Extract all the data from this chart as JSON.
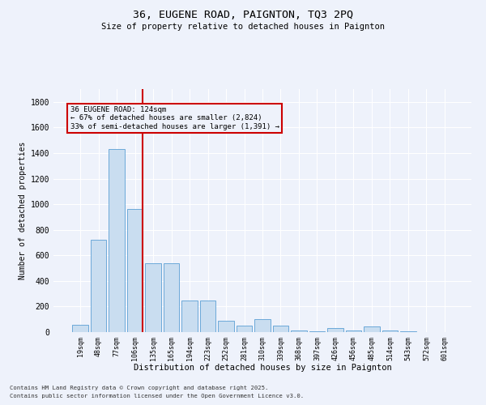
{
  "title1": "36, EUGENE ROAD, PAIGNTON, TQ3 2PQ",
  "title2": "Size of property relative to detached houses in Paignton",
  "xlabel": "Distribution of detached houses by size in Paignton",
  "ylabel": "Number of detached properties",
  "categories": [
    "19sqm",
    "48sqm",
    "77sqm",
    "106sqm",
    "135sqm",
    "165sqm",
    "194sqm",
    "223sqm",
    "252sqm",
    "281sqm",
    "310sqm",
    "339sqm",
    "368sqm",
    "397sqm",
    "426sqm",
    "456sqm",
    "485sqm",
    "514sqm",
    "543sqm",
    "572sqm",
    "601sqm"
  ],
  "values": [
    60,
    720,
    1430,
    960,
    540,
    540,
    250,
    250,
    90,
    50,
    100,
    50,
    10,
    5,
    30,
    10,
    45,
    10,
    5,
    3,
    3
  ],
  "bar_color": "#c9ddf0",
  "bar_edge_color": "#5a9fd4",
  "vline_color": "#cc0000",
  "annotation_text": "36 EUGENE ROAD: 124sqm\n← 67% of detached houses are smaller (2,824)\n33% of semi-detached houses are larger (1,391) →",
  "annotation_box_color": "#cc0000",
  "annotation_text_color": "#000000",
  "ylim": [
    0,
    1900
  ],
  "yticks": [
    0,
    200,
    400,
    600,
    800,
    1000,
    1200,
    1400,
    1600,
    1800
  ],
  "bg_color": "#eef2fb",
  "grid_color": "#ffffff",
  "footer1": "Contains HM Land Registry data © Crown copyright and database right 2025.",
  "footer2": "Contains public sector information licensed under the Open Government Licence v3.0."
}
